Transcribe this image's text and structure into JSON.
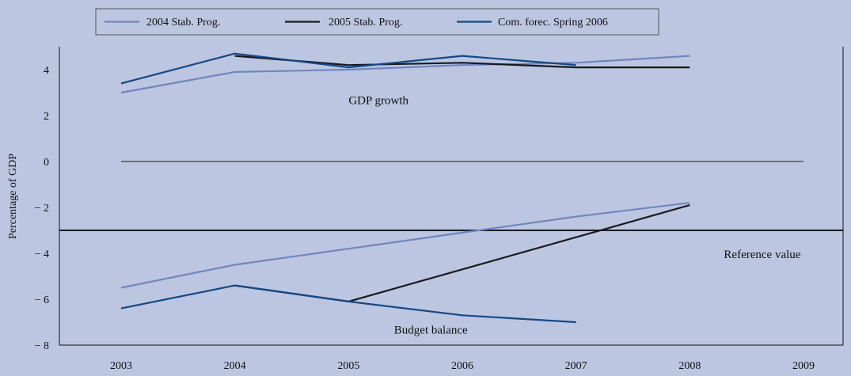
{
  "chart_data": {
    "type": "line",
    "title": "",
    "xlabel": "",
    "ylabel": "Percentage of GDP",
    "xlim": [
      2003,
      2009
    ],
    "ylim": [
      -8,
      5
    ],
    "x_ticks": [
      2003,
      2004,
      2005,
      2006,
      2007,
      2008,
      2009
    ],
    "y_ticks": [
      -8,
      -6,
      -4,
      -2,
      0,
      2,
      4
    ],
    "y_tick_labels": [
      "− 8",
      "− 6",
      "− 4",
      "− 2",
      "0",
      "2",
      "4"
    ],
    "legend_position": "top",
    "series": [
      {
        "name": "2004 Stab. Prog.",
        "color": "#6e86c0",
        "gdp_growth": {
          "x": [
            2003,
            2004,
            2005,
            2006,
            2007,
            2008
          ],
          "y": [
            3.0,
            3.9,
            4.0,
            4.2,
            4.3,
            4.6
          ]
        },
        "budget_balance": {
          "x": [
            2003,
            2004,
            2005,
            2006,
            2007,
            2008
          ],
          "y": [
            -5.5,
            -4.5,
            -3.8,
            -3.1,
            -2.4,
            -1.8
          ]
        }
      },
      {
        "name": "2005 Stab. Prog.",
        "color": "#1a1a1a",
        "gdp_growth": {
          "x": [
            2004,
            2005,
            2006,
            2007,
            2008
          ],
          "y": [
            4.6,
            4.2,
            4.3,
            4.1,
            4.1
          ]
        },
        "budget_balance": {
          "x": [
            2004,
            2005,
            2006,
            2007,
            2008
          ],
          "y": [
            -5.4,
            -6.1,
            -4.7,
            -3.3,
            -1.9
          ]
        }
      },
      {
        "name": "Com. forec. Spring 2006",
        "color": "#104a8a",
        "gdp_growth": {
          "x": [
            2003,
            2004,
            2005,
            2006,
            2007
          ],
          "y": [
            3.4,
            4.7,
            4.1,
            4.6,
            4.2
          ]
        },
        "budget_balance": {
          "x": [
            2003,
            2004,
            2005,
            2006,
            2007
          ],
          "y": [
            -6.4,
            -5.4,
            -6.1,
            -6.7,
            -7.0
          ]
        }
      }
    ],
    "reference_lines": [
      {
        "y": 0,
        "color": "#1a1a1a",
        "x": [
          2003,
          2009
        ]
      },
      {
        "label": "Reference value",
        "y": -3,
        "color": "#1a1a1a",
        "x": [
          2003,
          2009
        ]
      }
    ],
    "annotations": [
      {
        "text": "GDP growth",
        "x": 2005,
        "y": 2.5
      },
      {
        "text": "Reference value",
        "x": 2008.3,
        "y": -4.2
      },
      {
        "text": "Budget balance",
        "x": 2005.4,
        "y": -7.5
      }
    ]
  }
}
